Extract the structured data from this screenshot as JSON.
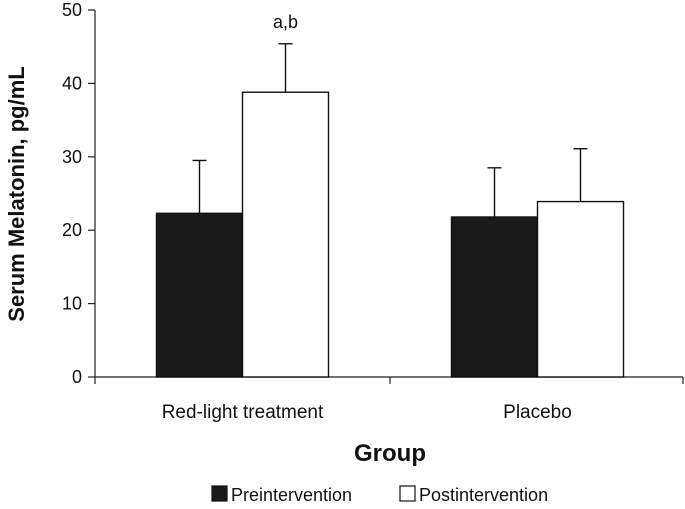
{
  "chart_data": {
    "type": "bar",
    "title": "",
    "xlabel": "Group",
    "ylabel": "Serum Melatonin, pg/mL",
    "categories": [
      "Red-light treatment",
      "Placebo"
    ],
    "series": [
      {
        "name": "Preintervention",
        "values": [
          22.3,
          21.8
        ],
        "errors": [
          7.2,
          6.7
        ],
        "fill": "#1a1a1a"
      },
      {
        "name": "Postintervention",
        "values": [
          38.8,
          23.9
        ],
        "errors": [
          6.6,
          7.2
        ],
        "fill": "#ffffff"
      }
    ],
    "ylim": [
      0,
      50
    ],
    "yticks": [
      0,
      10,
      20,
      30,
      40,
      50
    ],
    "grid": false,
    "legend_position": "bottom-center",
    "annotations": [
      {
        "category_index": 0,
        "series_index": 1,
        "text": "a,b"
      }
    ]
  }
}
